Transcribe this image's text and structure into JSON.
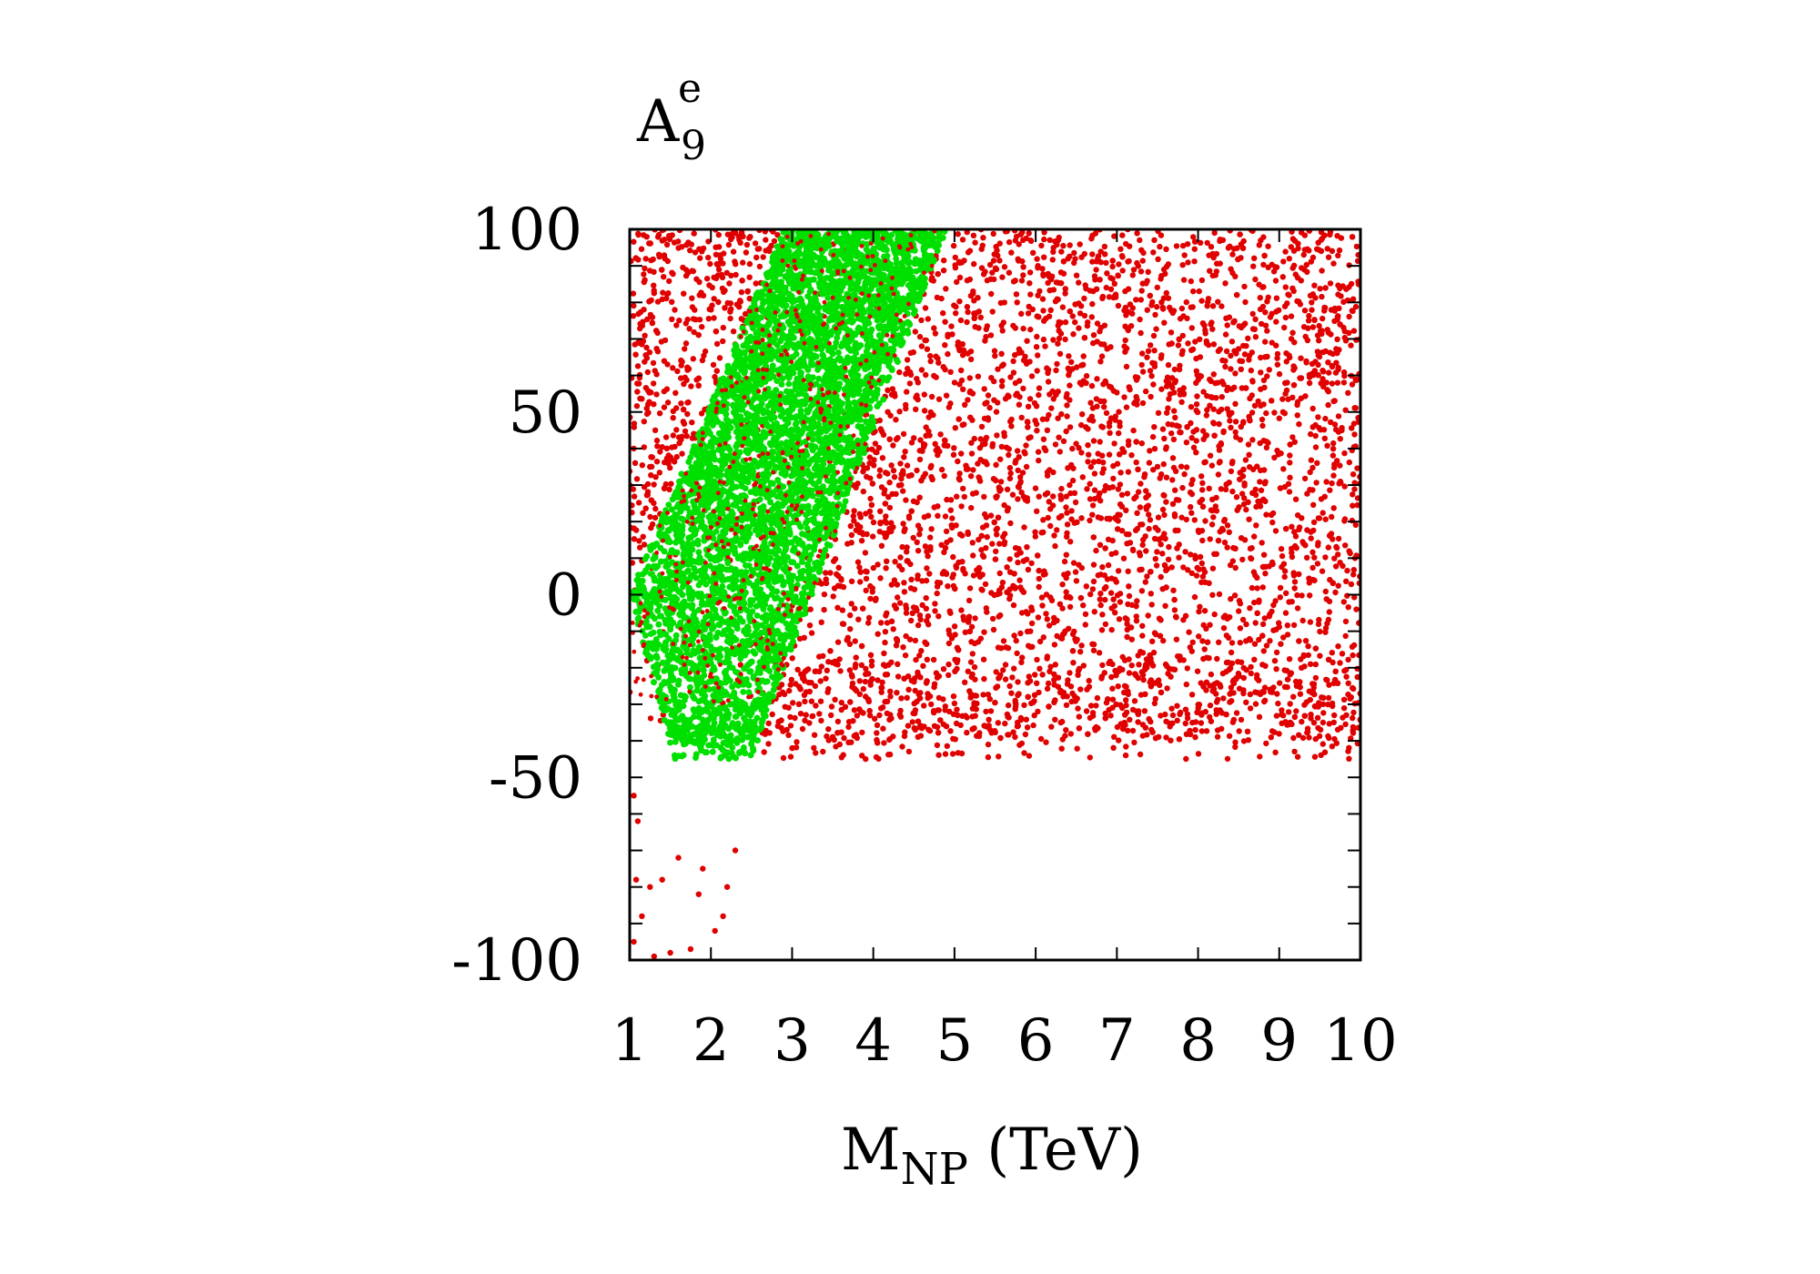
{
  "chart_data": {
    "type": "scatter",
    "title": "",
    "ylabel": {
      "main": "A",
      "sub": "9",
      "sup": "e"
    },
    "xlabel": {
      "main": "M",
      "sub": "NP",
      "suffix": " (TeV)"
    },
    "xlim": [
      1,
      10
    ],
    "ylim": [
      -100,
      100
    ],
    "x_ticks": [
      1,
      2,
      3,
      4,
      5,
      6,
      7,
      8,
      9,
      10
    ],
    "x_tick_labels": [
      "1",
      "2",
      "3",
      "4",
      "5",
      "6",
      "7",
      "8",
      "9",
      "10"
    ],
    "y_ticks": [
      -100,
      -50,
      0,
      50,
      100
    ],
    "y_tick_labels": [
      "-100",
      "-50",
      "0",
      "50",
      "100"
    ],
    "grid": false,
    "legend": "none",
    "series": [
      {
        "color": "#e00000",
        "description_regions": "dense red points: upper-left wedge above green band and whole region right of band, thinning below about -40",
        "sample_points": [
          [
            1.2,
            95
          ],
          [
            1.5,
            80
          ],
          [
            1.3,
            60
          ],
          [
            1.1,
            40
          ],
          [
            1.4,
            20
          ],
          [
            1.05,
            5
          ],
          [
            1.1,
            -20
          ],
          [
            1.2,
            -30
          ],
          [
            1.6,
            -35
          ],
          [
            1.1,
            -55
          ],
          [
            1.05,
            -70
          ],
          [
            1.3,
            -80
          ],
          [
            1.2,
            -90
          ],
          [
            1.5,
            -95
          ],
          [
            1.8,
            -90
          ],
          [
            2.1,
            -70
          ],
          [
            2.2,
            -85
          ],
          [
            5.5,
            90
          ],
          [
            6.5,
            60
          ],
          [
            7.5,
            30
          ],
          [
            8.5,
            10
          ],
          [
            9.5,
            -10
          ],
          [
            6.0,
            -25
          ],
          [
            7.8,
            -48
          ],
          [
            4.0,
            -45
          ],
          [
            9.5,
            -40
          ]
        ]
      },
      {
        "color": "#00e000",
        "description_regions": "green band from about (1,0)-(2.5,-45) up to (2.9,100)-(4.9,100)",
        "sample_points": [
          [
            1.1,
            5
          ],
          [
            1.5,
            20
          ],
          [
            2.0,
            40
          ],
          [
            2.5,
            60
          ],
          [
            3.0,
            80
          ],
          [
            3.5,
            95
          ],
          [
            2.5,
            -40
          ],
          [
            3.0,
            0
          ],
          [
            3.5,
            30
          ],
          [
            4.0,
            60
          ],
          [
            4.5,
            85
          ]
        ]
      }
    ]
  }
}
